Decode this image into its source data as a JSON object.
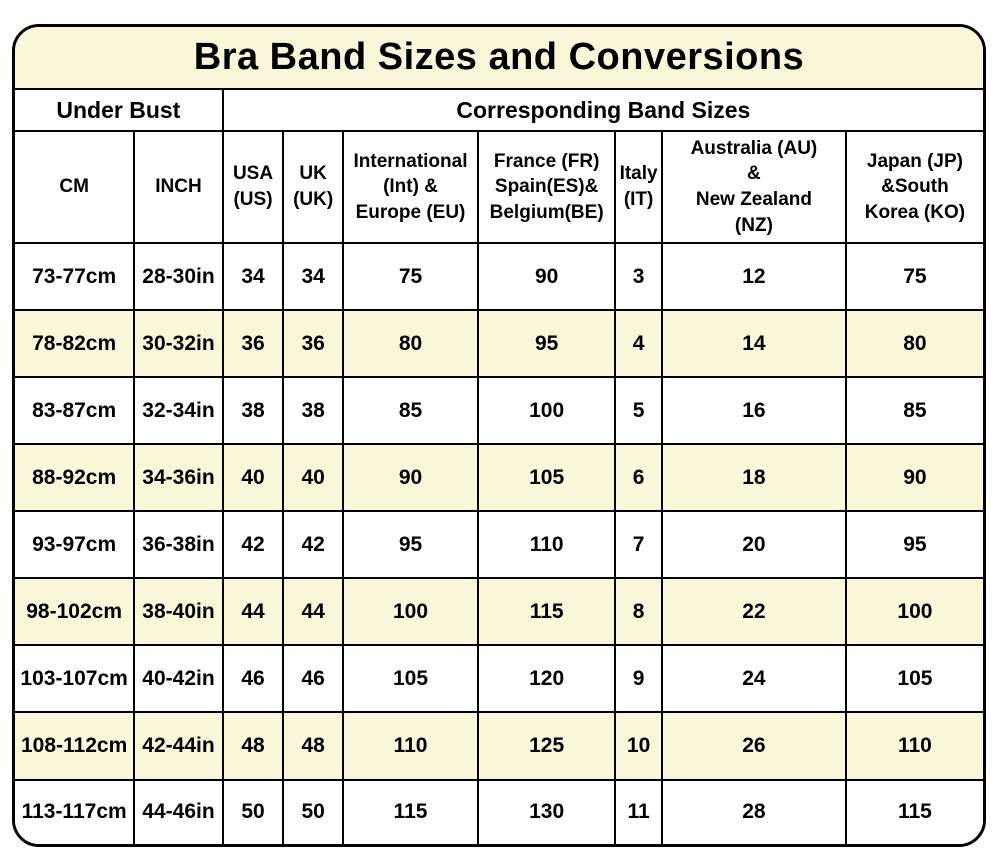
{
  "title": "Bra Band Sizes and Conversions",
  "group_headers": {
    "under_bust": "Under Bust",
    "corresponding_band_sizes": "Corresponding Band Sizes"
  },
  "column_headers": [
    {
      "id": "cm",
      "label": "CM"
    },
    {
      "id": "inch",
      "label": "INCH"
    },
    {
      "id": "usa-us",
      "label": "USA\n(US)"
    },
    {
      "id": "uk-uk",
      "label": "UK\n(UK)"
    },
    {
      "id": "international-europe-eu",
      "label": "International\n(Int) &\nEurope (EU)"
    },
    {
      "id": "france-spain-belgium",
      "label": "France (FR)\nSpain(ES)&\nBelgium(BE)"
    },
    {
      "id": "italy-it",
      "label": "Italy\n(IT)"
    },
    {
      "id": "australia-new-zealand",
      "label": "Australia (AU)\n&\nNew Zealand\n(NZ)"
    },
    {
      "id": "japan-south-korea",
      "label": "Japan (JP)\n&South\nKorea (KO)"
    }
  ],
  "highlight_row_indices": [
    1,
    3,
    5,
    7
  ],
  "colors": {
    "cream_highlight": "#FAF6DA",
    "row_white": "#FFFFFF",
    "border_black": "#000000",
    "text_black": "#000000"
  },
  "chart_data": {
    "type": "table",
    "title": "Bra Band Sizes and Conversions",
    "column_groups": [
      {
        "label": "Under Bust",
        "colspan": 2
      },
      {
        "label": "Corresponding Band Sizes",
        "colspan": 7
      }
    ],
    "columns": [
      "CM",
      "INCH",
      "USA (US)",
      "UK (UK)",
      "International (Int) & Europe (EU)",
      "France (FR) Spain(ES)& Belgium(BE)",
      "Italy (IT)",
      "Australia (AU) & New Zealand (NZ)",
      "Japan (JP) &South Korea (KO)"
    ],
    "rows": [
      [
        "73-77cm",
        "28-30in",
        34,
        34,
        75,
        90,
        3,
        12,
        75
      ],
      [
        "78-82cm",
        "30-32in",
        36,
        36,
        80,
        95,
        4,
        14,
        80
      ],
      [
        "83-87cm",
        "32-34in",
        38,
        38,
        85,
        100,
        5,
        16,
        85
      ],
      [
        "88-92cm",
        "34-36in",
        40,
        40,
        90,
        105,
        6,
        18,
        90
      ],
      [
        "93-97cm",
        "36-38in",
        42,
        42,
        95,
        110,
        7,
        20,
        95
      ],
      [
        "98-102cm",
        "38-40in",
        44,
        44,
        100,
        115,
        8,
        22,
        100
      ],
      [
        "103-107cm",
        "40-42in",
        46,
        46,
        105,
        120,
        9,
        24,
        105
      ],
      [
        "108-112cm",
        "42-44in",
        48,
        48,
        110,
        125,
        10,
        26,
        110
      ],
      [
        "113-117cm",
        "44-46in",
        50,
        50,
        115,
        130,
        11,
        28,
        115
      ]
    ]
  }
}
